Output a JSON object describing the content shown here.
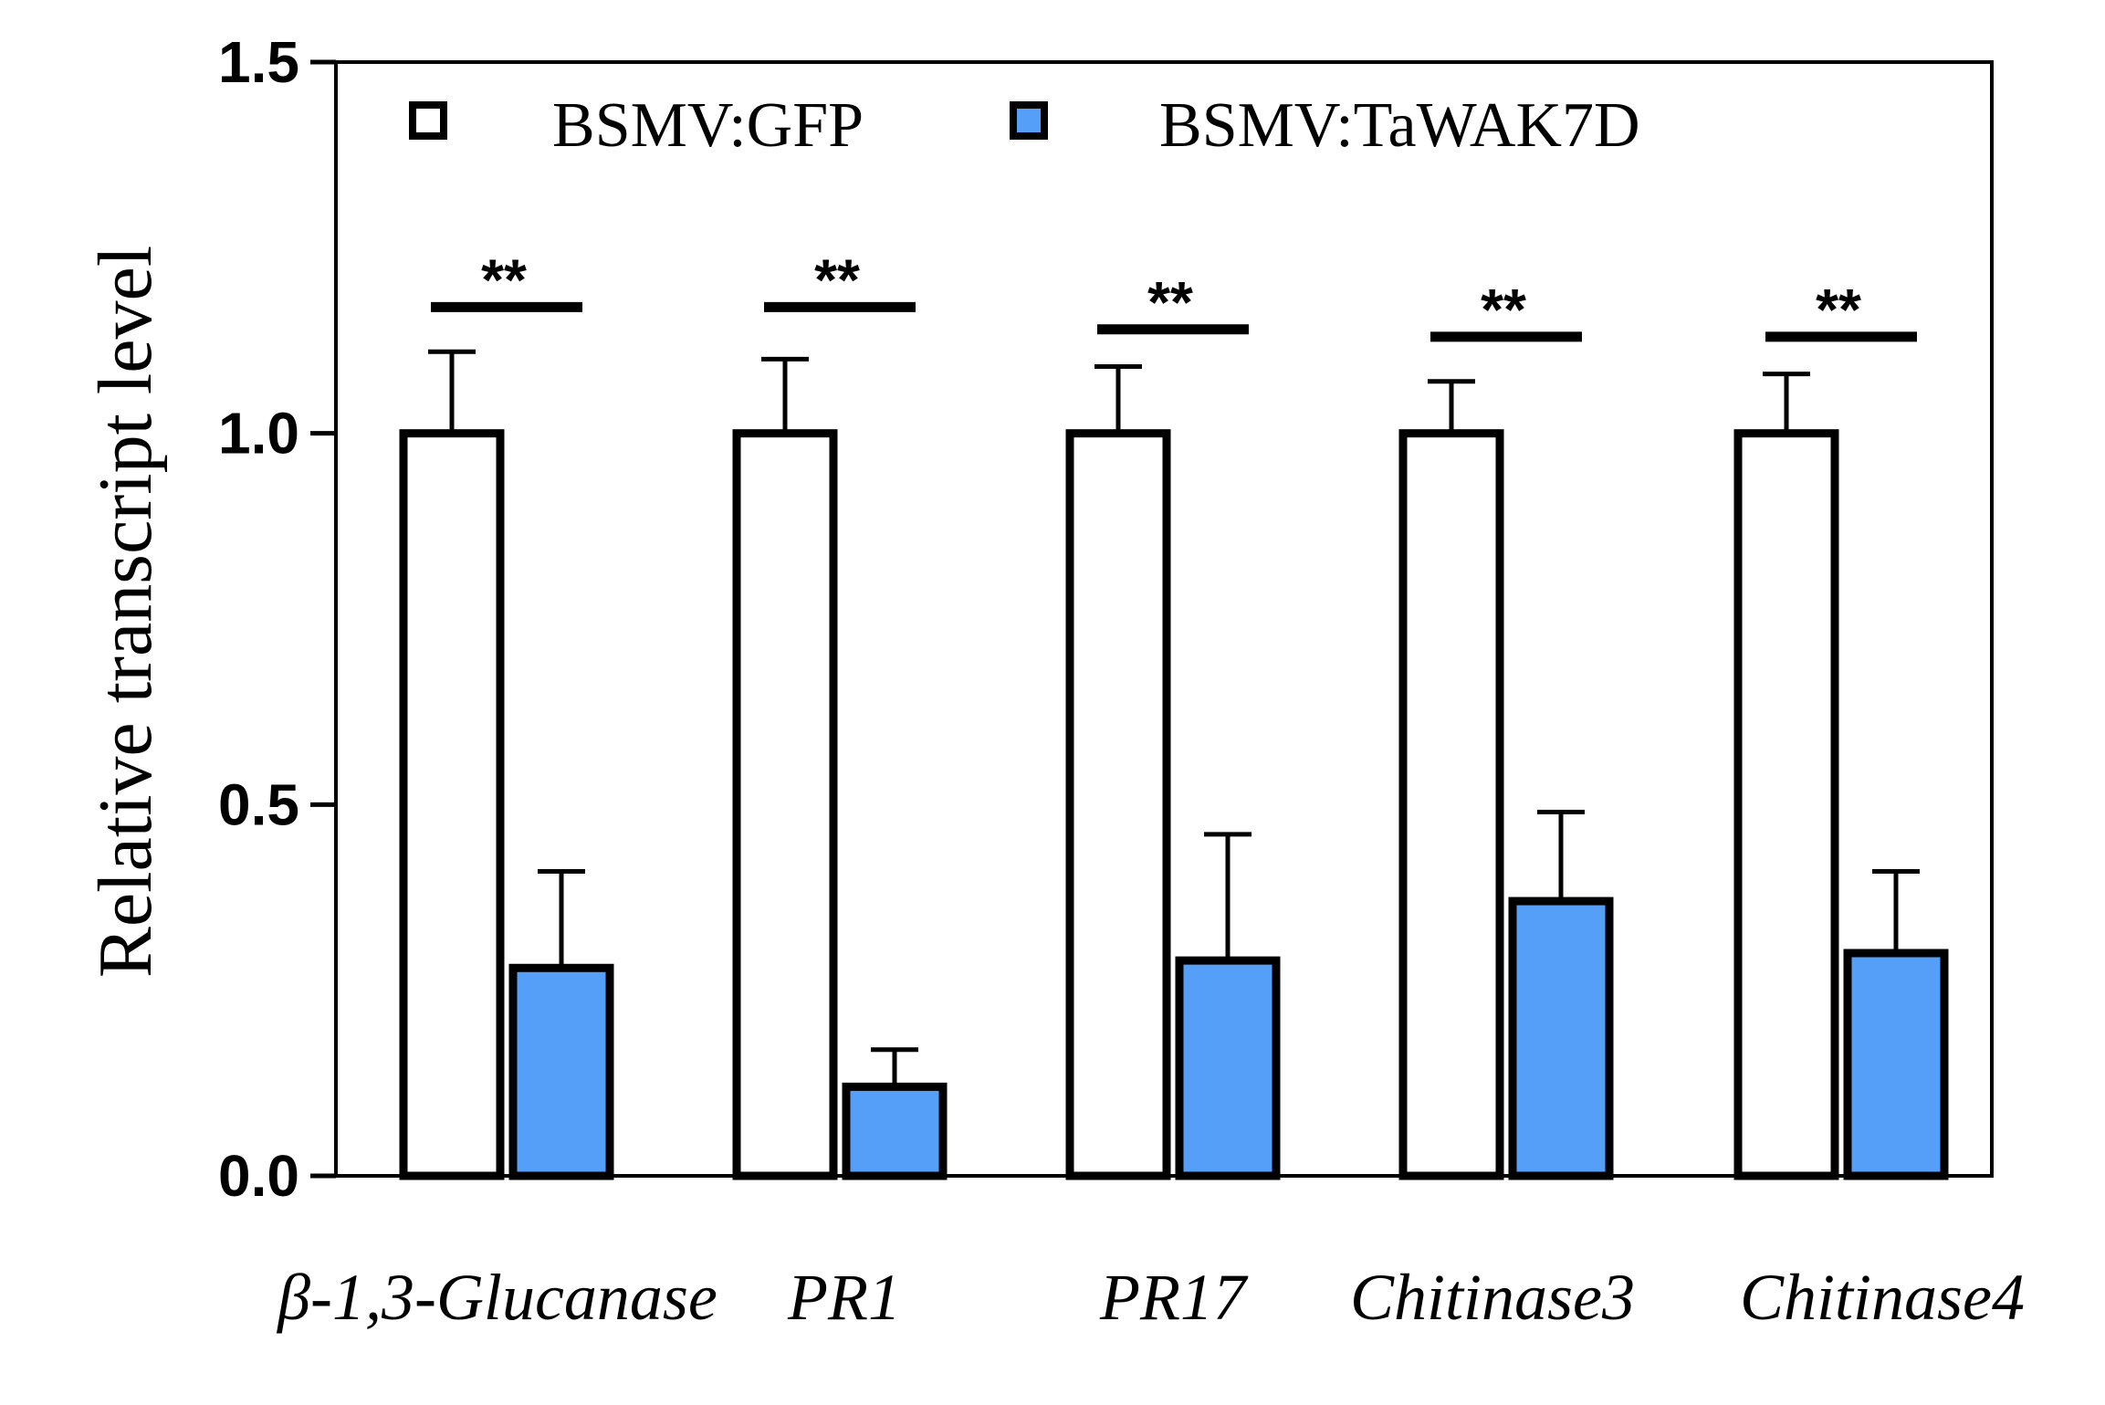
{
  "chart_data": {
    "type": "bar",
    "title": "",
    "xlabel": "",
    "ylabel": "Relative transcript level",
    "ylim": [
      0,
      1.5
    ],
    "yticks": [
      "0.0",
      "0.5",
      "1.0",
      "1.5"
    ],
    "ytick_values": [
      0,
      0.5,
      1.0,
      1.5
    ],
    "grid": false,
    "legend_position": "top",
    "categories": [
      {
        "label": "β-1,3-Glucanase"
      },
      {
        "label": "PR1"
      },
      {
        "label": "PR17"
      },
      {
        "label": "Chitinase3"
      },
      {
        "label": "Chitinase4"
      }
    ],
    "series": [
      {
        "name": "BSMV:GFP",
        "color": "#ffffff",
        "values": [
          1.0,
          1.0,
          1.0,
          1.0,
          1.0
        ],
        "errors": [
          0.11,
          0.1,
          0.09,
          0.07,
          0.08
        ]
      },
      {
        "name": "BSMV:TaWAK7D",
        "color": "#559ff8",
        "values": [
          0.28,
          0.12,
          0.29,
          0.37,
          0.3
        ],
        "errors": [
          0.13,
          0.05,
          0.17,
          0.12,
          0.11
        ]
      }
    ],
    "significance": [
      {
        "text": "**",
        "y": 1.17
      },
      {
        "text": "**",
        "y": 1.17
      },
      {
        "text": "**",
        "y": 1.14
      },
      {
        "text": "**",
        "y": 1.13
      },
      {
        "text": "**",
        "y": 1.13
      }
    ]
  }
}
